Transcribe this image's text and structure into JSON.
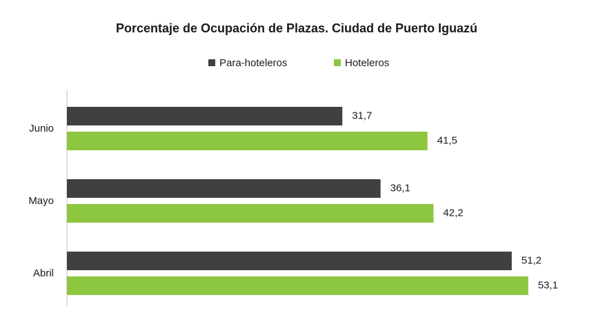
{
  "chart_data": {
    "type": "hbar",
    "title": "Porcentaje de Ocupación de Plazas. Ciudad de Puerto Iguazú",
    "categories": [
      "Junio",
      "Mayo",
      "Abril"
    ],
    "series": [
      {
        "name": "Para-hoteleros",
        "color": "#404040",
        "values": [
          31.7,
          36.1,
          51.2
        ],
        "value_labels": [
          "31,7",
          "36,1",
          "51,2"
        ]
      },
      {
        "name": "Hoteleros",
        "color": "#8dc63f",
        "values": [
          41.5,
          42.2,
          53.1
        ],
        "value_labels": [
          "41,5",
          "42,2",
          "53,1"
        ]
      }
    ],
    "xlim": [
      0,
      59
    ],
    "legend": "top"
  }
}
